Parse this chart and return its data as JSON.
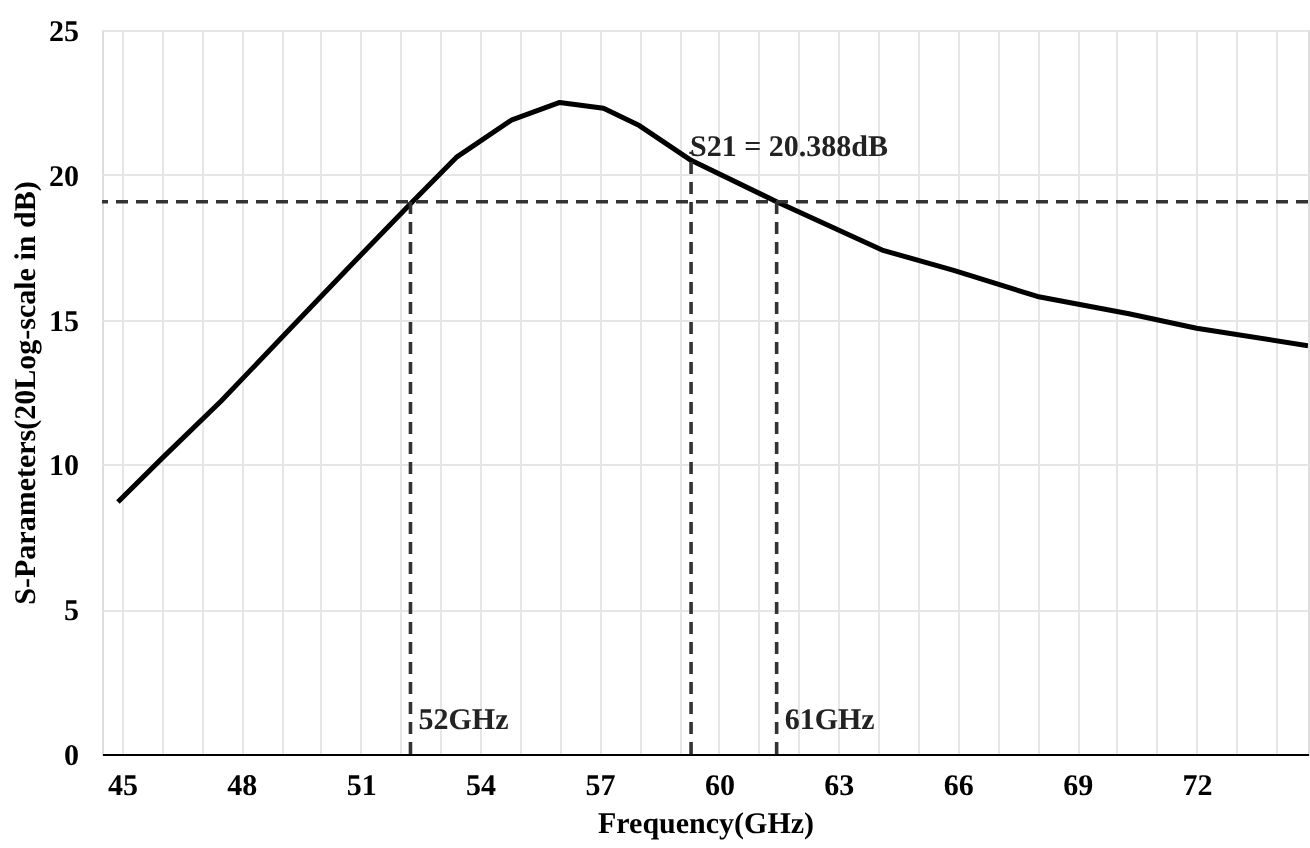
{
  "chart_data": {
    "type": "line",
    "xlabel": "Frequency(GHz)",
    "ylabel": "S-Parameters(20Log-scale in dB)",
    "xlim": [
      44.5,
      74.8
    ],
    "ylim": [
      0,
      25
    ],
    "xticks": [
      45,
      {
        "value": 46,
        "label": null
      },
      {
        "value": 47,
        "label": null
      },
      48,
      {
        "value": 49,
        "label": null
      },
      {
        "value": 50,
        "label": null
      },
      51,
      {
        "value": 52,
        "label": null
      },
      {
        "value": 53,
        "label": null
      },
      54,
      {
        "value": 55,
        "label": null
      },
      {
        "value": 56,
        "label": null
      },
      57,
      {
        "value": 58,
        "label": null
      },
      {
        "value": 59,
        "label": null
      },
      60,
      {
        "value": 61,
        "label": null
      },
      {
        "value": 62,
        "label": null
      },
      63,
      {
        "value": 64,
        "label": null
      },
      {
        "value": 65,
        "label": null
      },
      66,
      {
        "value": 67,
        "label": null
      },
      {
        "value": 68,
        "label": null
      },
      69,
      {
        "value": 70,
        "label": null
      },
      {
        "value": 71,
        "label": null
      },
      72,
      {
        "value": 73,
        "label": null
      },
      {
        "value": 74,
        "label": null
      }
    ],
    "yticks": [
      0,
      5,
      10,
      15,
      20,
      25
    ],
    "grid": true,
    "marker": "none",
    "series": [
      {
        "color": "#000000",
        "line_style": "solid",
        "x": [
          44.9,
          46.0,
          47.5,
          49.1,
          50.7,
          52.3,
          53.4,
          54.8,
          56.0,
          57.1,
          58.0,
          59.3,
          61.45,
          64.1,
          65.9,
          68.0,
          70.3,
          72.0,
          74.8
        ],
        "values": [
          8.7,
          10.2,
          12.2,
          14.5,
          16.8,
          19.07,
          20.6,
          21.9,
          22.5,
          22.3,
          21.7,
          20.5,
          19.07,
          17.4,
          16.7,
          15.8,
          15.2,
          14.7,
          14.1
        ]
      },
      {
        "color": "#333333",
        "line_style": "dashed",
        "x": [
          52.25,
          52.25
        ],
        "values": [
          0,
          19.07
        ]
      },
      {
        "color": "#333333",
        "line_style": "dashed",
        "x": [
          59.3,
          59.3
        ],
        "values": [
          0,
          20.8
        ]
      },
      {
        "color": "#333333",
        "line_style": "dashed",
        "x": [
          61.45,
          61.45
        ],
        "values": [
          0,
          19.07
        ]
      }
    ],
    "ref_lines": [
      {
        "axis": "y",
        "value": 19.07,
        "color": "#333333",
        "line_style": "dashed"
      }
    ],
    "annotations": [
      {
        "text": "52GHz",
        "x": 52.25,
        "y": 1.2
      },
      {
        "text": "61GHz",
        "x": 61.45,
        "y": 1.2
      },
      "S21 = 20.388dB"
    ]
  }
}
